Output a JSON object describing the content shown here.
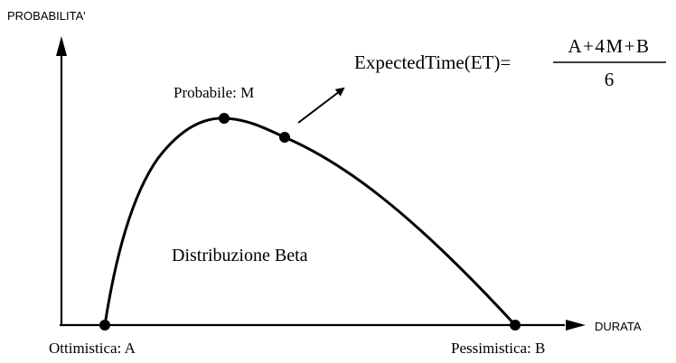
{
  "axes": {
    "y_label": "PROBABILITA'",
    "x_label": "DURATA"
  },
  "points": {
    "optimistic": "Ottimistica: A",
    "most_likely": "Probabile: M",
    "pessimistic": "Pessimistica: B"
  },
  "curve_label": "Distribuzione Beta",
  "formula": {
    "lhs": "ExpectedTime(ET)=",
    "numerator": "A+4M+B",
    "denominator": "6"
  },
  "colors": {
    "ink": "#000000",
    "background": "#ffffff"
  }
}
